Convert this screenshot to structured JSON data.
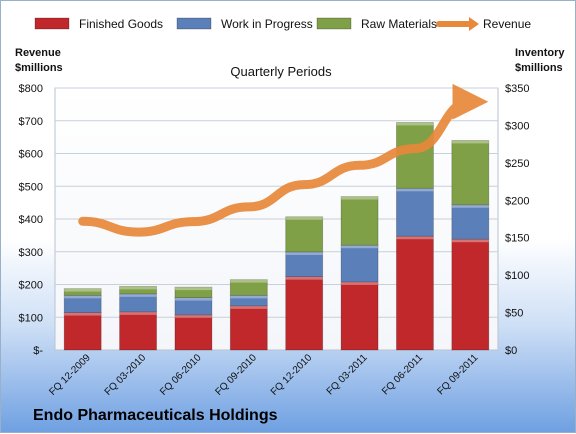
{
  "chart_data": {
    "type": "bar",
    "subtype": "stacked-bar-with-line",
    "title": "Quarterly Periods",
    "company": "Endo Pharmaceuticals Holdings",
    "left_axis_label": [
      "Revenue",
      "$millions"
    ],
    "right_axis_label": [
      "Inventory",
      "$millions"
    ],
    "categories": [
      "FQ 12-2009",
      "FQ 03-2010",
      "FQ 06-2010",
      "FQ 09-2010",
      "FQ 12-2010",
      "FQ 03-2011",
      "FQ 06-2011",
      "FQ 09-2011"
    ],
    "left_ticks": [
      "$-",
      "$100",
      "$200",
      "$300",
      "$400",
      "$500",
      "$600",
      "$700",
      "$800"
    ],
    "right_ticks": [
      "$0",
      "$50",
      "$100",
      "$150",
      "$200",
      "$250",
      "$300",
      "$350"
    ],
    "left_ylim": [
      0,
      800
    ],
    "right_ylim": [
      0,
      350
    ],
    "grid": true,
    "legend_position": "top",
    "series": [
      {
        "name": "Finished Goods",
        "axis": "right",
        "kind": "bar",
        "color": "#c0282c",
        "values": [
          50,
          51,
          47,
          59,
          98,
          91,
          152,
          148
        ]
      },
      {
        "name": "Work in Progress",
        "axis": "right",
        "kind": "bar",
        "color": "#5b7fb8",
        "values": [
          23,
          24,
          23,
          14,
          33,
          49,
          64,
          46
        ]
      },
      {
        "name": "Raw Materials",
        "axis": "right",
        "kind": "bar",
        "color": "#7fa046",
        "values": [
          9,
          10,
          14,
          21,
          47,
          65,
          88,
          86
        ]
      },
      {
        "name": "Revenue",
        "axis": "left",
        "kind": "line",
        "color": "#e8883a",
        "values": [
          393,
          360,
          392,
          437,
          505,
          564,
          615,
          758
        ]
      }
    ]
  }
}
